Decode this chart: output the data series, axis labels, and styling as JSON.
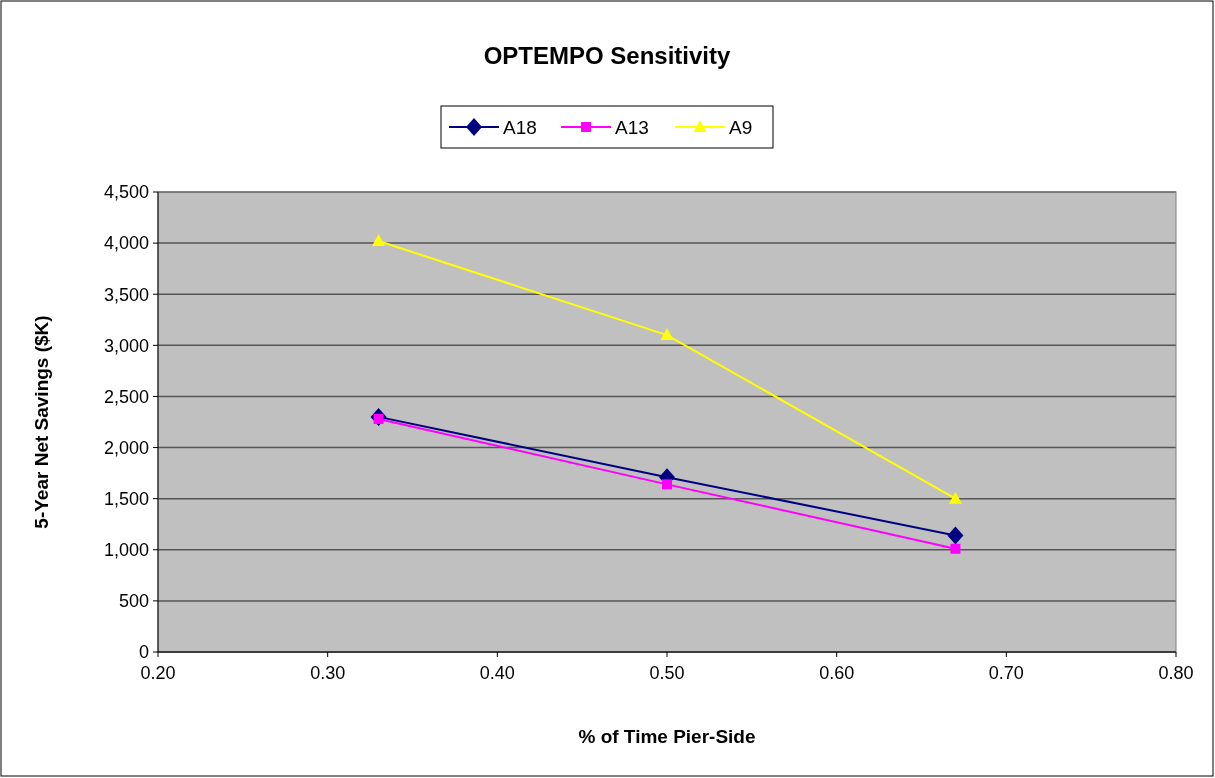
{
  "chart_data": {
    "type": "line",
    "title": "OPTEMPO Sensitivity",
    "xlabel": "% of Time Pier-Side",
    "ylabel": "5-Year Net Savings ($K)",
    "x": [
      0.33,
      0.5,
      0.67
    ],
    "series": [
      {
        "name": "A18",
        "color": "#000080",
        "marker": "diamond",
        "values": [
          2300,
          1710,
          1140
        ]
      },
      {
        "name": "A13",
        "color": "#ff00ff",
        "marker": "square",
        "values": [
          2280,
          1640,
          1010
        ]
      },
      {
        "name": "A9",
        "color": "#ffff00",
        "marker": "triangle",
        "values": [
          4020,
          3100,
          1500
        ]
      }
    ],
    "xlim": [
      0.2,
      0.8
    ],
    "xticks": [
      {
        "value": 0.2,
        "label": "0.20"
      },
      {
        "value": 0.3,
        "label": "0.30"
      },
      {
        "value": 0.4,
        "label": "0.40"
      },
      {
        "value": 0.5,
        "label": "0.50"
      },
      {
        "value": 0.6,
        "label": "0.60"
      },
      {
        "value": 0.7,
        "label": "0.70"
      },
      {
        "value": 0.8,
        "label": "0.80"
      }
    ],
    "ylim": [
      0,
      4500
    ],
    "yticks": [
      0,
      500,
      {
        "value": 1000,
        "label": "1,000"
      },
      {
        "value": 1500,
        "label": "1,500"
      },
      {
        "value": 2000,
        "label": "2,000"
      },
      {
        "value": 2500,
        "label": "2,500"
      },
      {
        "value": 3000,
        "label": "3,000"
      },
      {
        "value": 3500,
        "label": "3,500"
      },
      {
        "value": 4000,
        "label": "4,000"
      },
      {
        "value": 4500,
        "label": "4,500"
      }
    ],
    "grid": "y",
    "legend": "top"
  }
}
